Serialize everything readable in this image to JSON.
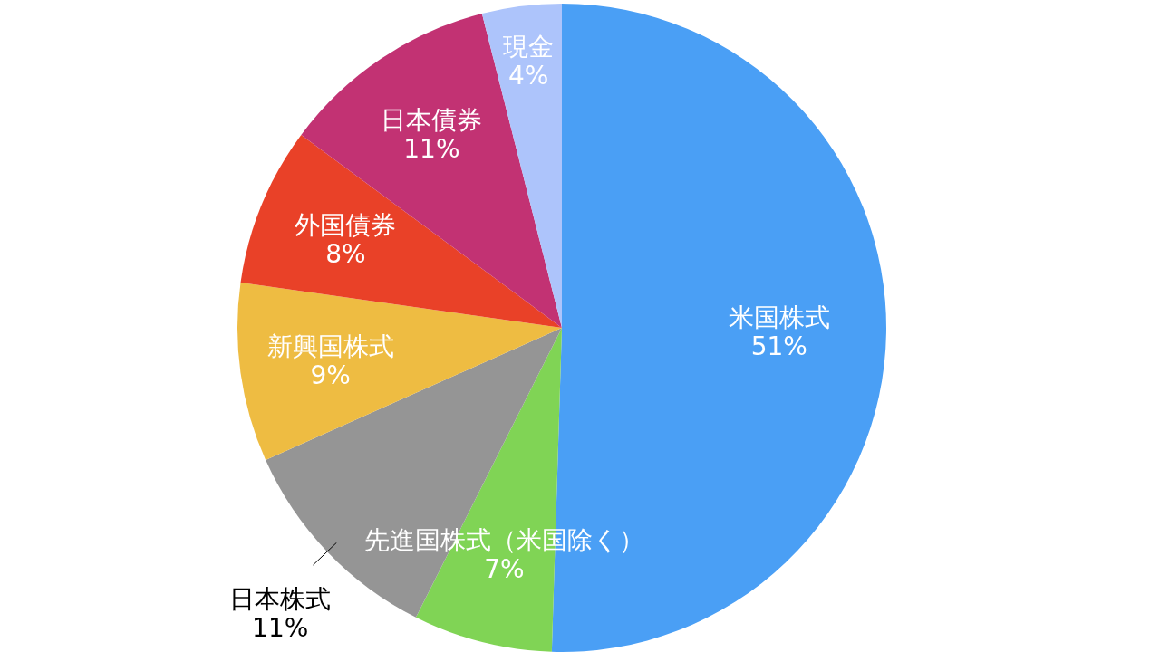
{
  "chart_data": {
    "type": "pie",
    "categories": [
      "米国株式",
      "先進国株式（米国除く）",
      "日本株式",
      "新興国株式",
      "外国債券",
      "日本債券",
      "現金"
    ],
    "values": [
      51,
      7,
      11,
      9,
      8,
      11,
      4
    ],
    "value_labels": [
      "51%",
      "7%",
      "11%",
      "9%",
      "8%",
      "11%",
      "4%"
    ],
    "colors": [
      "#4a9ff5",
      "#80d455",
      "#959595",
      "#eebc42",
      "#e94128",
      "#c23273",
      "#adc4fb"
    ]
  }
}
